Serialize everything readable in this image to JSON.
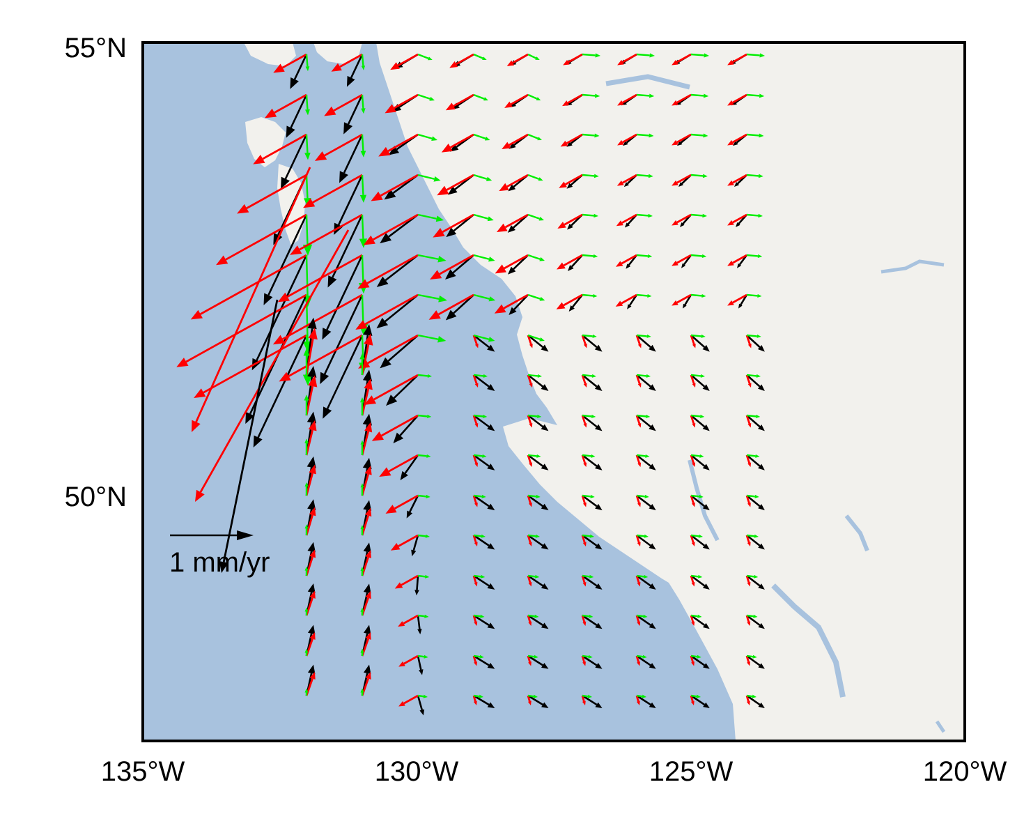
{
  "map": {
    "colors": {
      "ocean": "#a8c2de",
      "land": "#f2f1ed",
      "frame": "#000000",
      "series_black": "#000000",
      "series_red": "#ff0000",
      "series_green": "#00ee00"
    },
    "extent": {
      "lon": [
        -135,
        -120
      ],
      "lat": [
        47,
        55
      ]
    },
    "lat_ticks": [
      {
        "value": 55,
        "label": "55°N"
      },
      {
        "value": 50,
        "label": "50°N"
      }
    ],
    "lon_ticks": [
      {
        "value": -135,
        "label": "135°W"
      },
      {
        "value": -130,
        "label": "130°W"
      },
      {
        "value": -125,
        "label": "125°W"
      },
      {
        "value": -120,
        "label": "120°W"
      }
    ],
    "scale": {
      "value_mm_yr": 1,
      "label": "1 mm/yr"
    }
  }
}
